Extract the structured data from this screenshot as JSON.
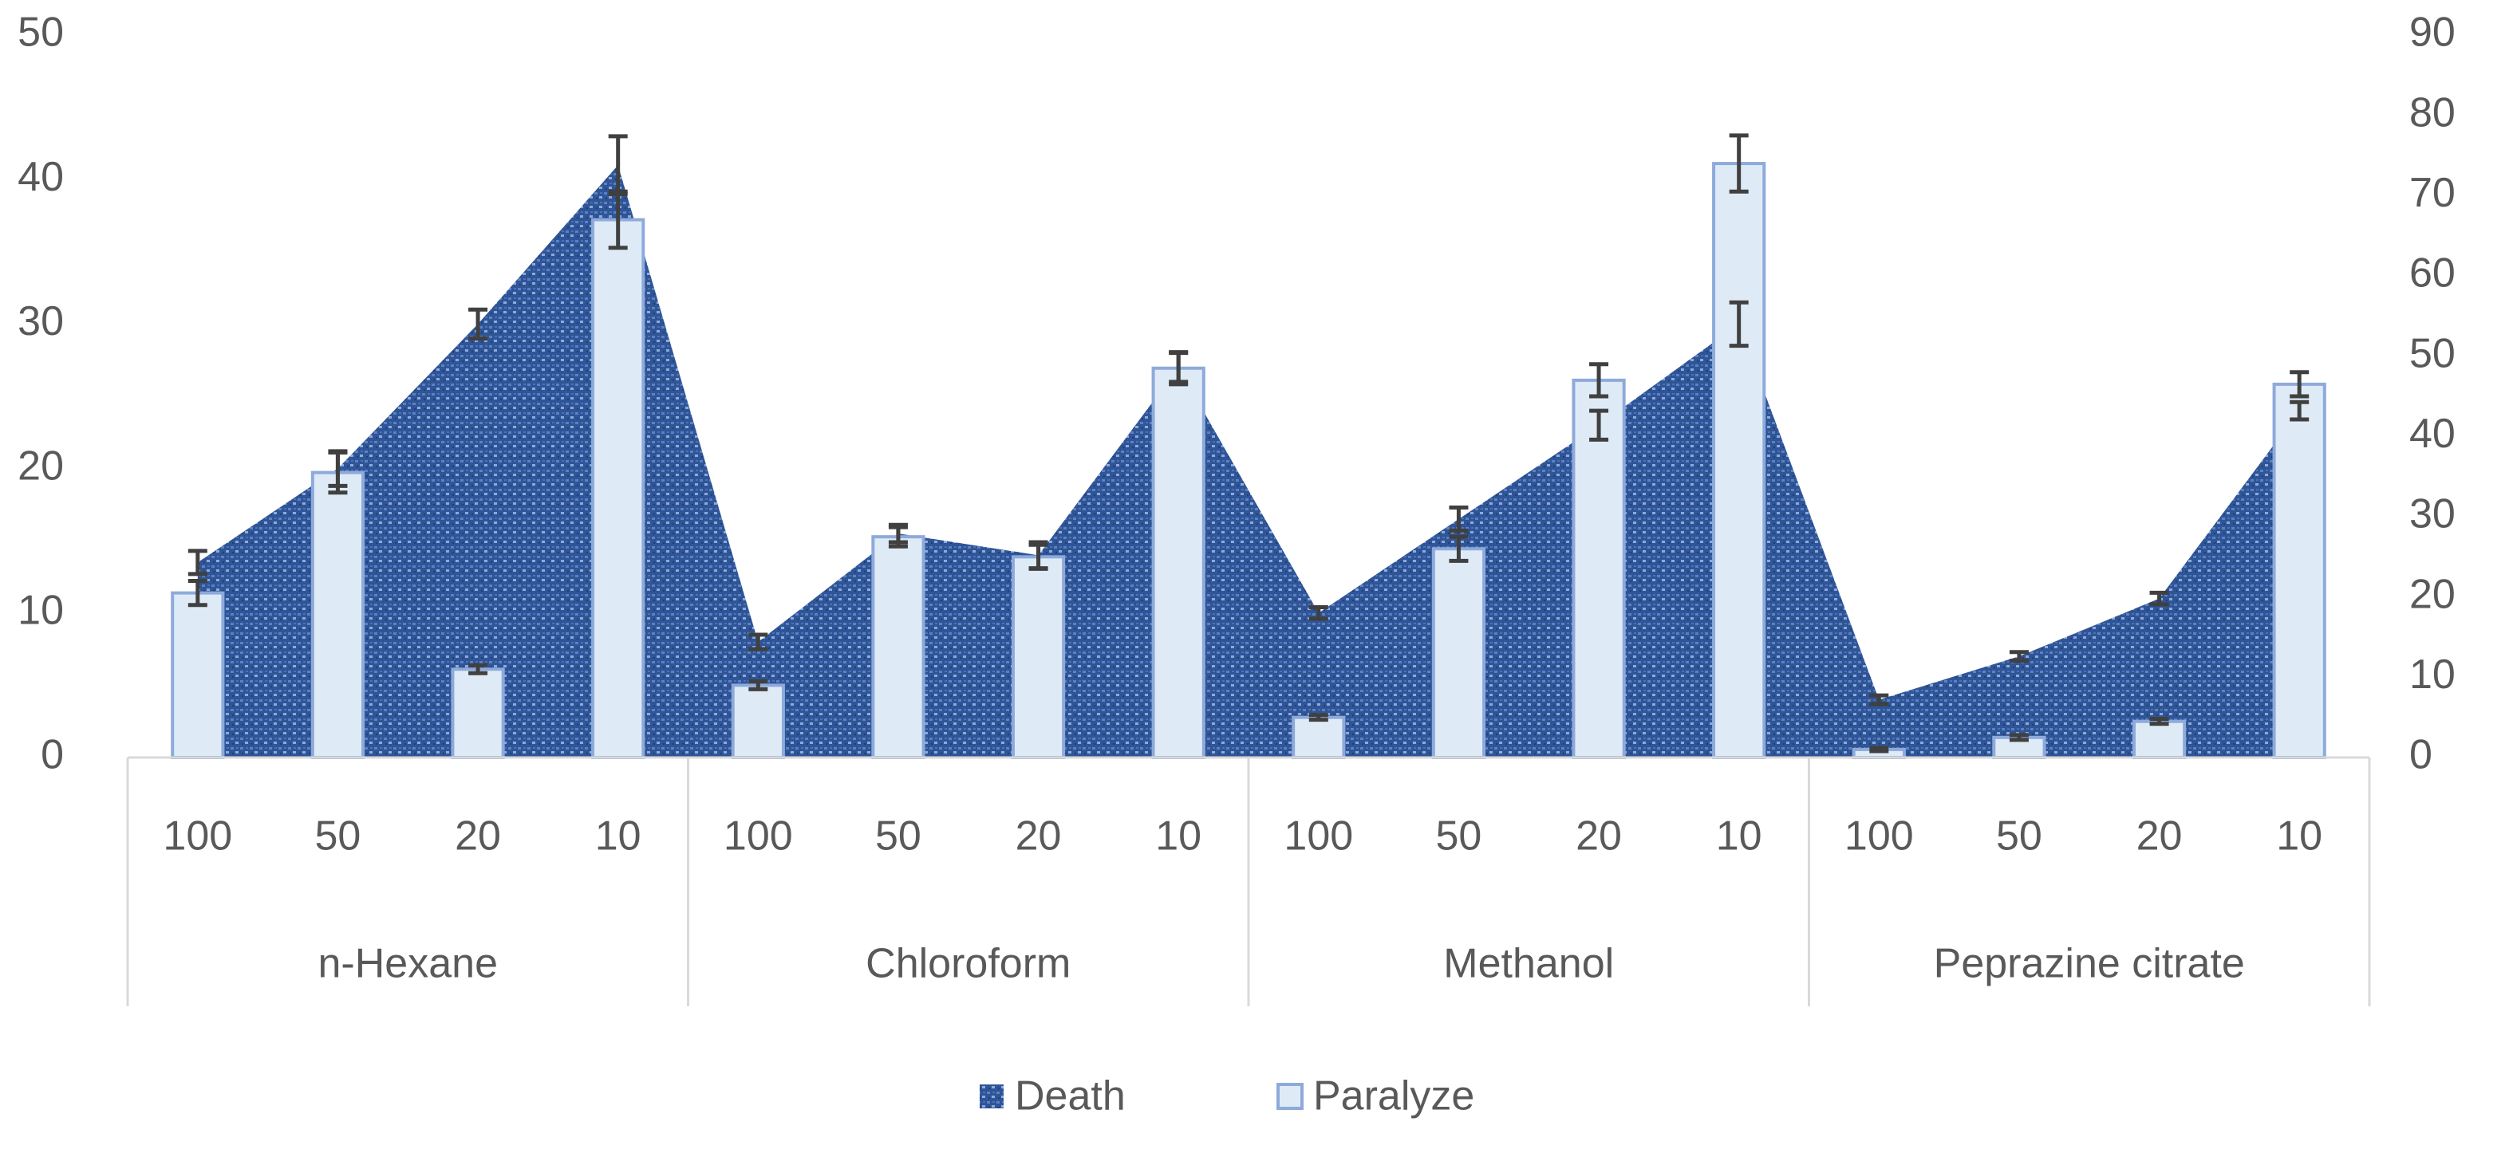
{
  "chart_data": {
    "type": "area_bar",
    "categories": [
      "100",
      "50",
      "20",
      "10",
      "100",
      "50",
      "20",
      "10",
      "100",
      "50",
      "20",
      "10",
      "100",
      "50",
      "20",
      "10"
    ],
    "groups": [
      "n-Hexane",
      "Chloroform",
      "Methanol",
      "Peprazine citrate"
    ],
    "series": [
      {
        "name": "Death",
        "type": "area",
        "axis": "y",
        "color": "#2f5597",
        "values": [
          13.5,
          20,
          30,
          41,
          8,
          15.5,
          14,
          27,
          10,
          16.5,
          23,
          30,
          4,
          7,
          11,
          24
        ],
        "errors": [
          0.8,
          1.2,
          1,
          2,
          0.5,
          0.6,
          0.9,
          1,
          0.4,
          0.8,
          1,
          1.5,
          0.3,
          0.3,
          0.4,
          0.6
        ]
      },
      {
        "name": "Paralyze",
        "type": "bar",
        "axis": "y2",
        "color": "#deebf7",
        "values": [
          20.5,
          35.5,
          11,
          67,
          9,
          27.5,
          25,
          48.5,
          5,
          26,
          47,
          74,
          1,
          2.5,
          4.5,
          46.5
        ],
        "errors": [
          1.5,
          2.5,
          0.5,
          3.5,
          0.5,
          1.2,
          1.5,
          2,
          0.3,
          1.5,
          2,
          3.5,
          0.2,
          0.3,
          0.3,
          1.5
        ]
      }
    ],
    "ylim": [
      0,
      50
    ],
    "yticks": [
      0,
      10,
      20,
      30,
      40,
      50
    ],
    "y2lim": [
      0,
      90
    ],
    "y2ticks": [
      0,
      10,
      20,
      30,
      40,
      50,
      60,
      70,
      80,
      90
    ],
    "grid": false,
    "legend": "bottom"
  }
}
